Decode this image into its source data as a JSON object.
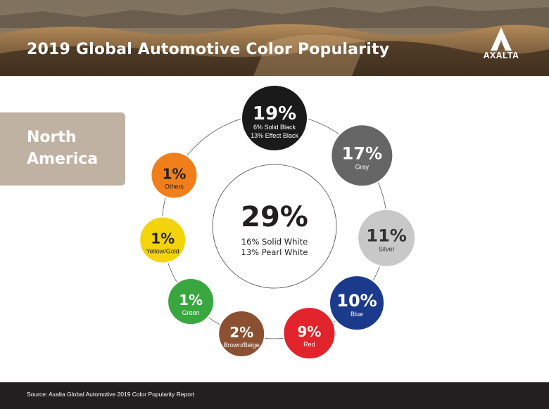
{
  "header": {
    "title": "2019 Global Automotive Color Popularity",
    "logo_text": "AXALTA"
  },
  "region": {
    "name": "North\nAmerica"
  },
  "footer": {
    "source": "Source: Axalta Global Automotive 2019 Color Popularity Report"
  },
  "chart_data": {
    "type": "pie",
    "title": "2019 Global Automotive Color Popularity",
    "region": "North America",
    "center": {
      "value": "29%",
      "lines": [
        "16% Solid White",
        "13% Pearl White"
      ],
      "category": "White",
      "percent": 29
    },
    "items": [
      {
        "percent": 19,
        "value": "19%",
        "lines": [
          "6% Solid Black",
          "13% Effect Black"
        ],
        "color": "#1a1a1a",
        "text_color": "#ffffff"
      },
      {
        "percent": 17,
        "value": "17%",
        "lines": [
          "Gray"
        ],
        "color": "#666666",
        "text_color": "#ffffff"
      },
      {
        "percent": 11,
        "value": "11%",
        "lines": [
          "Silver"
        ],
        "color": "#c8c8c8",
        "text_color": "#333333"
      },
      {
        "percent": 10,
        "value": "10%",
        "lines": [
          "Blue"
        ],
        "color": "#1b3a8c",
        "text_color": "#ffffff"
      },
      {
        "percent": 9,
        "value": "9%",
        "lines": [
          "Red"
        ],
        "color": "#e1232b",
        "text_color": "#ffffff"
      },
      {
        "percent": 2,
        "value": "2%",
        "lines": [
          "Brown/Beige"
        ],
        "color": "#8b4f31",
        "text_color": "#ffffff"
      },
      {
        "percent": 1,
        "value": "1%",
        "lines": [
          "Green"
        ],
        "color": "#3aa63f",
        "text_color": "#ffffff"
      },
      {
        "percent": 1,
        "value": "1%",
        "lines": [
          "Yellow/Gold"
        ],
        "color": "#f2d30c",
        "text_color": "#222222"
      },
      {
        "percent": 1,
        "value": "1%",
        "lines": [
          "Others"
        ],
        "color": "#f07f1b",
        "text_color": "#222222"
      }
    ]
  }
}
